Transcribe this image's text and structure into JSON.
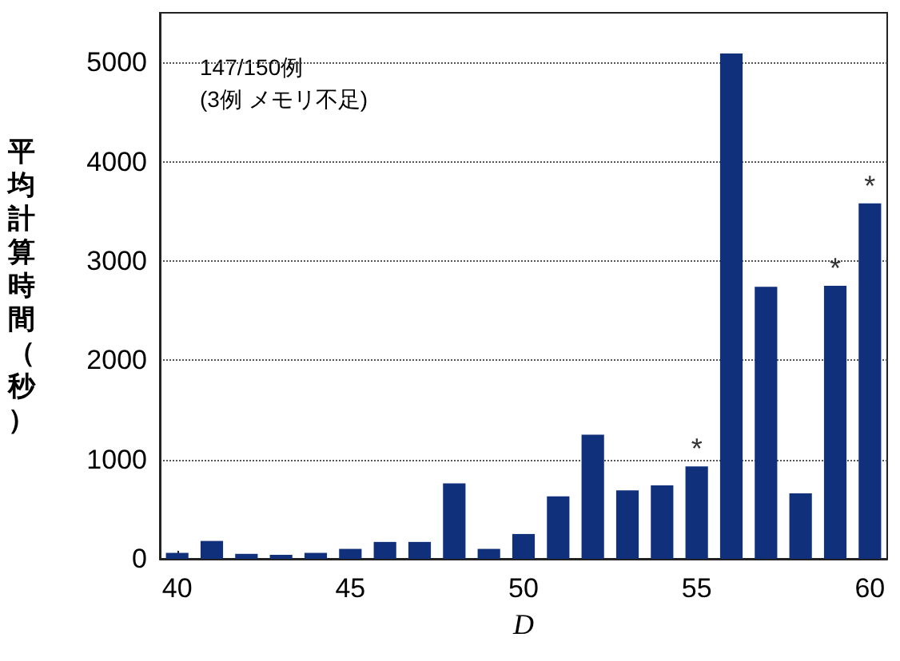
{
  "chart_data": {
    "type": "bar",
    "xlabel": "D",
    "ylabel": "平均計算時間（秒）",
    "x": [
      40,
      41,
      42,
      43,
      44,
      45,
      46,
      47,
      48,
      49,
      50,
      51,
      52,
      53,
      54,
      55,
      56,
      57,
      58,
      59,
      60
    ],
    "values": [
      60,
      180,
      50,
      40,
      60,
      100,
      170,
      170,
      760,
      100,
      250,
      630,
      1250,
      690,
      740,
      930,
      5090,
      2740,
      660,
      2750,
      3580
    ],
    "color": "#10307c",
    "xlim": [
      39.5,
      60.5
    ],
    "xticks": [
      40,
      45,
      50,
      55,
      60
    ],
    "ylim": [
      0,
      5500
    ],
    "yticks": [
      0,
      1000,
      2000,
      3000,
      4000,
      5000
    ],
    "grid": "y",
    "annotations": [
      "147/150例\n(3例 メモリ不足)",
      {
        "text": "*",
        "x": 55,
        "y": 930
      },
      {
        "text": "*",
        "x": 59,
        "y": 2750
      },
      {
        "text": "*",
        "x": 60,
        "y": 3580
      }
    ]
  }
}
